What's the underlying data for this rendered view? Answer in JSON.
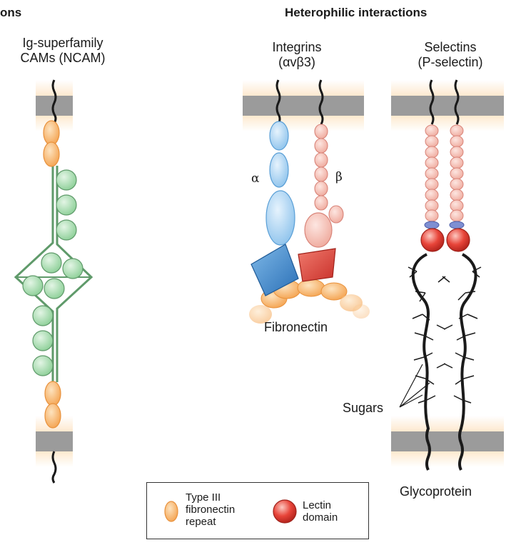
{
  "headers": {
    "left": "ons",
    "right": "Heterophilic interactions"
  },
  "ncam": {
    "title_line1": "Ig-superfamily",
    "title_line2": "CAMs (NCAM)"
  },
  "integrins": {
    "title_line1": "Integrins",
    "title_line2": "(αvβ3)",
    "alpha_label": "α",
    "beta_label": "β",
    "ligand_label": "Fibronectin"
  },
  "selectins": {
    "title_line1": "Selectins",
    "title_line2": "(P-selectin)",
    "sugars_label": "Sugars",
    "ligand_label": "Glycoprotein"
  },
  "legend": {
    "fibronectin_repeat_line1": "Type III",
    "fibronectin_repeat_line2": "fibronectin",
    "fibronectin_repeat_line3": "repeat",
    "lectin_line1": "Lectin",
    "lectin_line2": "domain"
  },
  "colors": {
    "membrane": "#9b9b9b",
    "membrane_glow": "#fde9cf",
    "fibronectin_repeat": "#f7b462",
    "ig_domain": "#a8dcb0",
    "alpha_subunit": "#a9d2f2",
    "beta_subunit": "#f6c1b8",
    "lectin": "#e8453a",
    "egf_link": "#6f7fc8"
  }
}
